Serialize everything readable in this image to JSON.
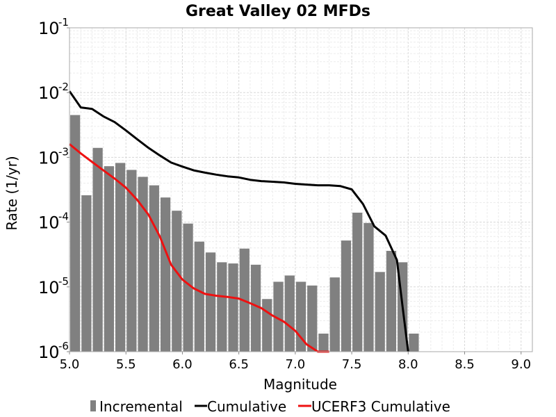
{
  "chart_data": {
    "type": "bar",
    "title": "Great Valley 02 MFDs",
    "xlabel": "Magnitude",
    "ylabel": "Rate (1/yr)",
    "xlim": [
      5.0,
      9.1
    ],
    "ylim": [
      1e-06,
      0.1
    ],
    "yscale": "log",
    "grid": true,
    "legend_position": "bottom",
    "x_ticks": [
      "5.0",
      "5.5",
      "6.0",
      "6.5",
      "7.0",
      "7.5",
      "8.0",
      "8.5",
      "9.0"
    ],
    "y_tick_base": "10",
    "y_tick_exponents": [
      "-1",
      "-2",
      "-3",
      "-4",
      "-5",
      "-6"
    ],
    "series": [
      {
        "name": "Incremental",
        "kind": "bar",
        "color": "#808080",
        "x": [
          5.0,
          5.1,
          5.2,
          5.3,
          5.4,
          5.5,
          5.6,
          5.7,
          5.8,
          5.9,
          6.0,
          6.1,
          6.2,
          6.3,
          6.4,
          6.5,
          6.6,
          6.7,
          6.8,
          6.9,
          7.0,
          7.1,
          7.2,
          7.3,
          7.4,
          7.5,
          7.6,
          7.7,
          7.8,
          7.9,
          8.0
        ],
        "values": [
          0.0045,
          0.00026,
          0.0014,
          0.00073,
          0.00082,
          0.00064,
          0.0005,
          0.00037,
          0.00024,
          0.00015,
          9.5e-05,
          5e-05,
          3.4e-05,
          2.4e-05,
          2.3e-05,
          3.9e-05,
          2.2e-05,
          6.5e-06,
          1.2e-05,
          1.5e-05,
          1.2e-05,
          1.05e-05,
          1.9e-06,
          1.4e-05,
          5.2e-05,
          0.00014,
          9.7e-05,
          1.7e-05,
          3.6e-05,
          2.4e-05,
          1.9e-06
        ]
      },
      {
        "name": "Cumulative",
        "kind": "line",
        "color": "#000000",
        "x": [
          5.0,
          5.1,
          5.2,
          5.3,
          5.4,
          5.5,
          5.6,
          5.7,
          5.8,
          5.9,
          6.0,
          6.1,
          6.2,
          6.3,
          6.4,
          6.5,
          6.6,
          6.7,
          6.8,
          6.9,
          7.0,
          7.1,
          7.2,
          7.3,
          7.4,
          7.5,
          7.6,
          7.7,
          7.8,
          7.9,
          7.95,
          8.0
        ],
        "values": [
          0.0105,
          0.0059,
          0.0056,
          0.0043,
          0.0035,
          0.0026,
          0.0019,
          0.0014,
          0.00107,
          0.00083,
          0.00072,
          0.00063,
          0.00058,
          0.00054,
          0.00051,
          0.00049,
          0.00045,
          0.00043,
          0.00042,
          0.00041,
          0.00039,
          0.00038,
          0.00037,
          0.00037,
          0.00036,
          0.00032,
          0.00019,
          8.6e-05,
          6.2e-05,
          2.6e-05,
          5e-06,
          1e-06
        ]
      },
      {
        "name": "UCERF3 Cumulative",
        "kind": "line",
        "color": "#ee1111",
        "x": [
          5.0,
          5.1,
          5.2,
          5.3,
          5.4,
          5.5,
          5.6,
          5.7,
          5.8,
          5.9,
          6.0,
          6.1,
          6.2,
          6.3,
          6.4,
          6.5,
          6.6,
          6.7,
          6.8,
          6.9,
          7.0,
          7.1,
          7.2,
          7.3
        ],
        "values": [
          0.0016,
          0.00115,
          0.00085,
          0.00063,
          0.00047,
          0.00034,
          0.00022,
          0.00013,
          6e-05,
          2.2e-05,
          1.3e-05,
          9.5e-06,
          7.8e-06,
          7.3e-06,
          7e-06,
          6.6e-06,
          5.6e-06,
          4.7e-06,
          3.6e-06,
          2.9e-06,
          2.1e-06,
          1.3e-06,
          1e-06,
          1e-06
        ]
      }
    ]
  }
}
